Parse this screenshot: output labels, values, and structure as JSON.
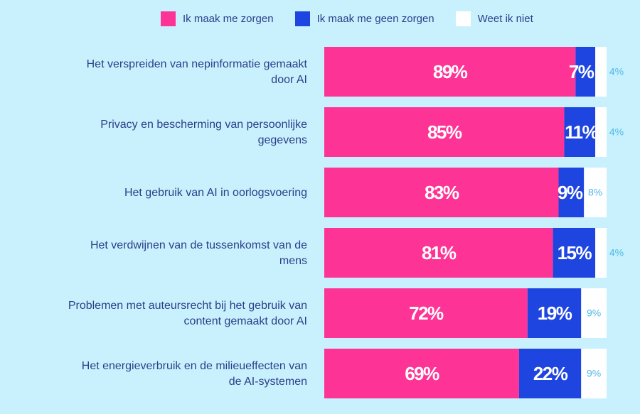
{
  "chart_data": {
    "type": "bar",
    "orientation": "horizontal",
    "stacked": true,
    "title": "",
    "xlim": [
      0,
      100
    ],
    "legend_position": "top",
    "categories": [
      [
        "Het verspreiden van nepinformatie gemaakt",
        "door AI"
      ],
      [
        "Privacy en bescherming van persoonlijke",
        "gegevens"
      ],
      [
        "Het gebruik van AI in oorlogsvoering"
      ],
      [
        "Het verdwijnen van de tussenkomst van de",
        "mens"
      ],
      [
        "Problemen met auteursrecht bij het gebruik van",
        "content gemaakt door AI"
      ],
      [
        "Het energieverbruik en de milieueffecten van",
        "de AI-systemen"
      ]
    ],
    "series": [
      {
        "name": "Ik maak me zorgen",
        "color": "#fe3396",
        "values": [
          89,
          85,
          83,
          81,
          72,
          69
        ]
      },
      {
        "name": "Ik maak me geen zorgen",
        "color": "#1f45e0",
        "values": [
          7,
          11,
          9,
          15,
          19,
          22
        ]
      },
      {
        "name": "Weet ik niet",
        "color": "#ffffff",
        "values": [
          4,
          4,
          8,
          4,
          9,
          9
        ]
      }
    ],
    "value_suffix": "%"
  }
}
